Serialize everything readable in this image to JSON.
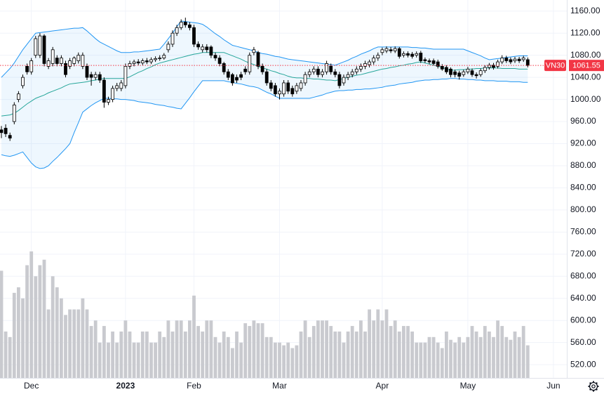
{
  "chart_data": {
    "type": "candlestick",
    "symbol": "VN30",
    "categories": [
      null,
      null,
      null,
      null,
      null,
      null,
      null,
      "Dec",
      null,
      null,
      null,
      null,
      null,
      null,
      null,
      null,
      null,
      null,
      null,
      null,
      null,
      null,
      null,
      null,
      null,
      null,
      null,
      null,
      null,
      "2023",
      null,
      null,
      null,
      null,
      null,
      null,
      null,
      null,
      null,
      null,
      null,
      null,
      null,
      null,
      null,
      "Feb",
      null,
      null,
      null,
      null,
      null,
      null,
      null,
      null,
      null,
      null,
      null,
      null,
      null,
      null,
      null,
      null,
      null,
      null,
      null,
      "Mar",
      null,
      null,
      null,
      null,
      null,
      null,
      null,
      null,
      null,
      null,
      null,
      null,
      null,
      null,
      null,
      null,
      null,
      null,
      null,
      null,
      null,
      null,
      null,
      "Apr",
      null,
      null,
      null,
      null,
      null,
      null,
      null,
      null,
      null,
      null,
      null,
      null,
      null,
      null,
      null,
      null,
      null,
      null,
      null,
      "May",
      null,
      null,
      null,
      null,
      null,
      null,
      null,
      null,
      null,
      null,
      null,
      null,
      null,
      null,
      null,
      null,
      null,
      null,
      null,
      "Jun"
    ],
    "open": [
      945,
      948,
      935,
      960,
      1000,
      1025,
      1060,
      1050,
      1080,
      1080,
      1115,
      1060,
      1065,
      1075,
      1065,
      1065,
      1060,
      1065,
      1070,
      1060,
      1060,
      1045,
      1040,
      1045,
      1035,
      995,
      1000,
      1020,
      1020,
      1025,
      1060,
      1065,
      1068,
      1066,
      1070,
      1068,
      1072,
      1074,
      1075,
      1090,
      1100,
      1120,
      1130,
      1140,
      1135,
      1130,
      1100,
      1090,
      1095,
      1095,
      1080,
      1075,
      1065,
      1050,
      1045,
      1040,
      1045,
      1055,
      1050,
      1085,
      1085,
      1060,
      1050,
      1030,
      1025,
      1010,
      1010,
      1030,
      1020,
      1015,
      1020,
      1030,
      1045,
      1050,
      1055,
      1045,
      1050,
      1060,
      1050,
      1045,
      1030,
      1040,
      1045,
      1050,
      1055,
      1060,
      1063,
      1068,
      1075,
      1085,
      1088,
      1090,
      1088,
      1092,
      1080,
      1083,
      1082,
      1080,
      1084,
      1072,
      1070,
      1070,
      1068,
      1060,
      1058,
      1055,
      1050,
      1048,
      1045,
      1050,
      1052,
      1045,
      1045,
      1052,
      1058,
      1062,
      1060,
      1068,
      1075,
      1072,
      1070,
      1073,
      1072,
      1072,
      null,
      null,
      null,
      null,
      null,
      null
    ],
    "high": [
      952,
      955,
      940,
      995,
      1015,
      1045,
      1065,
      1075,
      1115,
      1120,
      1118,
      1075,
      1095,
      1080,
      1080,
      1070,
      1075,
      1078,
      1085,
      1085,
      1065,
      1050,
      1050,
      1050,
      1040,
      1005,
      1025,
      1030,
      1035,
      1065,
      1070,
      1072,
      1073,
      1074,
      1075,
      1076,
      1078,
      1080,
      1084,
      1105,
      1125,
      1135,
      1145,
      1148,
      1140,
      1135,
      1105,
      1100,
      1100,
      1098,
      1085,
      1080,
      1068,
      1055,
      1048,
      1045,
      1050,
      1060,
      1085,
      1095,
      1088,
      1065,
      1055,
      1035,
      1030,
      1020,
      1035,
      1035,
      1025,
      1030,
      1035,
      1050,
      1055,
      1060,
      1060,
      1055,
      1070,
      1065,
      1055,
      1050,
      1045,
      1050,
      1055,
      1060,
      1065,
      1070,
      1072,
      1080,
      1085,
      1094,
      1096,
      1095,
      1096,
      1095,
      1087,
      1087,
      1086,
      1087,
      1088,
      1076,
      1074,
      1074,
      1072,
      1064,
      1062,
      1058,
      1054,
      1052,
      1054,
      1059,
      1056,
      1049,
      1056,
      1062,
      1066,
      1066,
      1072,
      1080,
      1079,
      1076,
      1077,
      1077,
      1079,
      1076,
      null,
      null,
      null,
      null,
      null,
      null
    ],
    "low": [
      930,
      932,
      925,
      955,
      995,
      1020,
      1045,
      1045,
      1075,
      1075,
      1060,
      1055,
      1060,
      1060,
      1060,
      1040,
      1055,
      1060,
      1065,
      1055,
      1035,
      1025,
      1035,
      1030,
      985,
      990,
      995,
      1015,
      1015,
      1020,
      1055,
      1060,
      1062,
      1062,
      1064,
      1064,
      1068,
      1070,
      1072,
      1085,
      1095,
      1115,
      1126,
      1130,
      1125,
      1095,
      1090,
      1085,
      1085,
      1075,
      1070,
      1060,
      1045,
      1035,
      1025,
      1030,
      1035,
      1045,
      1045,
      1080,
      1055,
      1045,
      1025,
      1015,
      1005,
      1000,
      1005,
      1010,
      1005,
      1010,
      1015,
      1025,
      1040,
      1045,
      1040,
      1040,
      1045,
      1045,
      1040,
      1020,
      1025,
      1035,
      1040,
      1045,
      1050,
      1055,
      1058,
      1063,
      1070,
      1080,
      1084,
      1084,
      1084,
      1074,
      1076,
      1076,
      1074,
      1076,
      1066,
      1066,
      1064,
      1062,
      1056,
      1052,
      1046,
      1040,
      1040,
      1036,
      1041,
      1046,
      1041,
      1038,
      1041,
      1048,
      1054,
      1054,
      1056,
      1064,
      1066,
      1064,
      1066,
      1066,
      1068,
      1058,
      null,
      null,
      null,
      null,
      null,
      null
    ],
    "close": [
      940,
      938,
      930,
      990,
      1010,
      1040,
      1050,
      1070,
      1110,
      1115,
      1065,
      1070,
      1090,
      1065,
      1075,
      1045,
      1070,
      1075,
      1080,
      1080,
      1040,
      1040,
      1045,
      1035,
      995,
      1000,
      1020,
      1025,
      1030,
      1060,
      1065,
      1068,
      1066,
      1070,
      1068,
      1072,
      1074,
      1075,
      1080,
      1100,
      1120,
      1130,
      1140,
      1135,
      1130,
      1100,
      1095,
      1095,
      1090,
      1080,
      1075,
      1065,
      1050,
      1040,
      1030,
      1035,
      1040,
      1050,
      1080,
      1090,
      1060,
      1050,
      1030,
      1020,
      1010,
      1015,
      1030,
      1015,
      1010,
      1025,
      1030,
      1045,
      1050,
      1055,
      1045,
      1050,
      1065,
      1050,
      1045,
      1025,
      1040,
      1045,
      1050,
      1055,
      1060,
      1065,
      1068,
      1075,
      1080,
      1090,
      1092,
      1088,
      1092,
      1078,
      1083,
      1080,
      1078,
      1083,
      1070,
      1070,
      1068,
      1065,
      1060,
      1055,
      1050,
      1045,
      1045,
      1042,
      1050,
      1055,
      1045,
      1043,
      1052,
      1058,
      1062,
      1058,
      1068,
      1075,
      1070,
      1068,
      1073,
      1070,
      1075,
      1061.55,
      null,
      null,
      null,
      null,
      null,
      null
    ],
    "up_color": "#ffffff",
    "down_color": "#000000",
    "volume": {
      "color": "#c9cacf",
      "values": [
        690,
        580,
        570,
        650,
        660,
        640,
        700,
        725,
        680,
        700,
        710,
        620,
        680,
        660,
        640,
        610,
        620,
        620,
        620,
        640,
        620,
        590,
        600,
        560,
        590,
        560,
        580,
        560,
        580,
        600,
        580,
        560,
        560,
        580,
        580,
        560,
        560,
        580,
        570,
        600,
        580,
        600,
        600,
        580,
        600,
        645,
        590,
        580,
        600,
        600,
        570,
        560,
        580,
        570,
        550,
        580,
        560,
        595,
        590,
        600,
        595,
        595,
        570,
        570,
        560,
        560,
        555,
        560,
        550,
        555,
        580,
        600,
        570,
        590,
        600,
        600,
        600,
        590,
        580,
        580,
        560,
        580,
        590,
        580,
        600,
        580,
        620,
        600,
        620,
        600,
        620,
        590,
        600,
        580,
        590,
        590,
        580,
        560,
        560,
        560,
        570,
        570,
        560,
        550,
        580,
        565,
        560,
        570,
        560,
        570,
        590,
        580,
        570,
        590,
        580,
        570,
        600,
        590,
        570,
        565,
        580,
        570,
        590,
        555,
        null,
        null,
        null,
        null,
        null,
        null
      ]
    },
    "bollinger": {
      "fill": "rgba(33,150,243,0.08)",
      "upper": {
        "color": "#2196f3",
        "values": [
          1040,
          1048,
          1056,
          1066,
          1078,
          1090,
          1100,
          1110,
          1120,
          1121,
          1122,
          1123,
          1124,
          1125,
          1126,
          1127,
          1128,
          1129,
          1129,
          1130,
          1124,
          1117,
          1110,
          1104,
          1100,
          1096,
          1092,
          1088,
          1085,
          1085,
          1085,
          1086,
          1086,
          1087,
          1088,
          1089,
          1090,
          1091,
          1100,
          1110,
          1120,
          1132,
          1142,
          1141,
          1140,
          1139,
          1138,
          1136,
          1131,
          1125,
          1119,
          1114,
          1108,
          1103,
          1098,
          1096,
          1094,
          1092,
          1090,
          1088,
          1085,
          1083,
          1082,
          1080,
          1078,
          1077,
          1075,
          1073,
          1072,
          1071,
          1070,
          1069,
          1068,
          1067,
          1066,
          1065,
          1064,
          1063,
          1062,
          1065,
          1068,
          1071,
          1075,
          1078,
          1082,
          1085,
          1088,
          1092,
          1095,
          1095,
          1095,
          1095,
          1095,
          1095,
          1095,
          1095,
          1094,
          1094,
          1093,
          1093,
          1092,
          1091,
          1091,
          1091,
          1091,
          1091,
          1091,
          1091,
          1091,
          1088,
          1085,
          1082,
          1079,
          1075,
          1072,
          1073,
          1074,
          1075,
          1076,
          1077,
          1078,
          1079,
          1079,
          1079,
          null,
          null,
          null,
          null,
          null,
          null
        ]
      },
      "middle": {
        "color": "#26a69a",
        "values": [
          970,
          971,
          972,
          975,
          980,
          986,
          992,
          997,
          1002,
          1005,
          1008,
          1012,
          1015,
          1018,
          1021,
          1025,
          1028,
          1029,
          1030,
          1031,
          1032,
          1034,
          1035,
          1037,
          1038,
          1038,
          1038,
          1038,
          1038,
          1038,
          1041,
          1045,
          1049,
          1052,
          1056,
          1059,
          1063,
          1066,
          1068,
          1070,
          1072,
          1074,
          1076,
          1078,
          1080,
          1082,
          1083,
          1085,
          1085,
          1085,
          1085,
          1085,
          1085,
          1082,
          1079,
          1076,
          1073,
          1069,
          1066,
          1063,
          1060,
          1057,
          1055,
          1052,
          1050,
          1047,
          1045,
          1042,
          1040,
          1039,
          1039,
          1038,
          1038,
          1037,
          1037,
          1036,
          1035,
          1035,
          1034,
          1036,
          1038,
          1040,
          1042,
          1044,
          1045,
          1047,
          1049,
          1051,
          1053,
          1055,
          1056,
          1058,
          1059,
          1061,
          1062,
          1064,
          1065,
          1067,
          1068,
          1066,
          1064,
          1062,
          1060,
          1058,
          1055,
          1053,
          1053,
          1054,
          1054,
          1055,
          1055,
          1056,
          1056,
          1057,
          1057,
          1057,
          1057,
          1056,
          1056,
          1056,
          1056,
          1055,
          1055,
          1055,
          null,
          null,
          null,
          null,
          null,
          null
        ]
      },
      "lower": {
        "color": "#2196f3",
        "values": [
          900,
          898,
          897,
          899,
          902,
          905,
          895,
          885,
          878,
          875,
          876,
          880,
          888,
          895,
          903,
          911,
          920,
          940,
          958,
          977,
          983,
          989,
          994,
          998,
          1002,
          1002,
          1001,
          1001,
          1000,
          1000,
          999,
          998,
          996,
          995,
          994,
          993,
          991,
          990,
          989,
          987,
          986,
          984,
          983,
          993,
          1003,
          1014,
          1024,
          1034,
          1034,
          1034,
          1034,
          1034,
          1034,
          1032,
          1031,
          1029,
          1028,
          1026,
          1024,
          1023,
          1021,
          1017,
          1013,
          1010,
          1006,
          1002,
          1002,
          1002,
          1002,
          1002,
          1002,
          1002,
          1002,
          1004,
          1006,
          1008,
          1011,
          1013,
          1015,
          1016,
          1016,
          1017,
          1017,
          1018,
          1018,
          1019,
          1019,
          1020,
          1021,
          1022,
          1024,
          1025,
          1026,
          1028,
          1029,
          1030,
          1031,
          1033,
          1034,
          1035,
          1035,
          1036,
          1036,
          1037,
          1037,
          1038,
          1038,
          1037,
          1037,
          1036,
          1036,
          1035,
          1035,
          1034,
          1034,
          1034,
          1033,
          1033,
          1033,
          1032,
          1032,
          1032,
          1031,
          1031,
          null,
          null,
          null,
          null,
          null,
          null
        ]
      }
    },
    "last_color": "#f23645",
    "ylim": [
      496,
      1180
    ],
    "yticks": [
      {
        "value": 520,
        "label": "520.00"
      },
      {
        "value": 560,
        "label": "560.00"
      },
      {
        "value": 600,
        "label": "600.00"
      },
      {
        "value": 640,
        "label": "640.00"
      },
      {
        "value": 680,
        "label": "680.00"
      },
      {
        "value": 720,
        "label": "720.00"
      },
      {
        "value": 760,
        "label": "760.00"
      },
      {
        "value": 800,
        "label": "800.00"
      },
      {
        "value": 840,
        "label": "840.00"
      },
      {
        "value": 880,
        "label": "880.00"
      },
      {
        "value": 920,
        "label": "920.00"
      },
      {
        "value": 960,
        "label": "960.00"
      },
      {
        "value": 1000,
        "label": "1000.00"
      },
      {
        "value": 1040,
        "label": "1040.00"
      },
      {
        "value": 1080,
        "label": "1080.00"
      },
      {
        "value": 1120,
        "label": "1120.00"
      },
      {
        "value": 1160,
        "label": "1160.00"
      }
    ],
    "grid": true
  }
}
